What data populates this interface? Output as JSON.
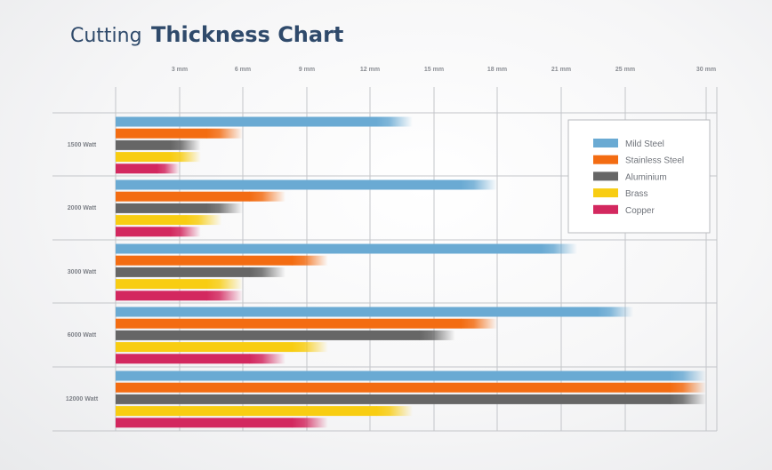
{
  "chart_data": {
    "type": "bar",
    "orientation": "horizontal",
    "title_prefix": "Cutting",
    "title_main": "Thickness Chart",
    "x_ticks": [
      {
        "label": "3 mm",
        "value": 3
      },
      {
        "label": "6 mm",
        "value": 6
      },
      {
        "label": "9 mm",
        "value": 9
      },
      {
        "label": "12 mm",
        "value": 12
      },
      {
        "label": "15 mm",
        "value": 15
      },
      {
        "label": "18 mm",
        "value": 18
      },
      {
        "label": "21 mm",
        "value": 21
      },
      {
        "label": "25 mm",
        "value": 25
      },
      {
        "label": "30 mm",
        "value": 30
      }
    ],
    "categories": [
      "1500 Watt",
      "2000 Watt",
      "3000 Watt",
      "6000 Watt",
      "12000 Watt"
    ],
    "series": [
      {
        "name": "Mild Steel",
        "color": "#6aaad3",
        "values": [
          14,
          18,
          22,
          25.5,
          30
        ]
      },
      {
        "name": "Stainless Steel",
        "color": "#f36c12",
        "values": [
          6,
          8,
          10,
          18,
          30
        ]
      },
      {
        "name": "Aluminium",
        "color": "#666666",
        "values": [
          4,
          6,
          8,
          16,
          30
        ]
      },
      {
        "name": "Brass",
        "color": "#f8cd12",
        "values": [
          4,
          5,
          6,
          10,
          14
        ]
      },
      {
        "name": "Copper",
        "color": "#d3285f",
        "values": [
          3,
          4,
          6,
          8,
          10
        ]
      }
    ],
    "legend_position": "top-right",
    "grid": true
  }
}
